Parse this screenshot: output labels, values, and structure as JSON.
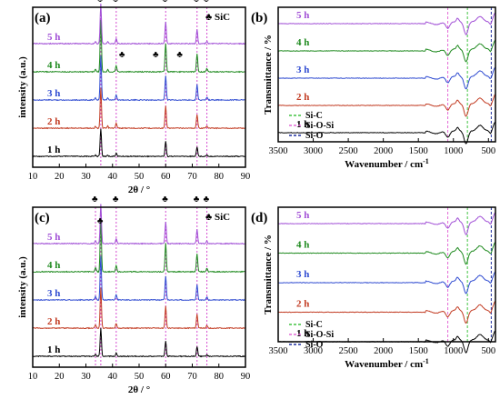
{
  "panels": [
    {
      "label": "(a)",
      "xlabel": "2θ / °",
      "ylabel": "intensity (a.u.)",
      "xticks": [
        "10",
        "20",
        "30",
        "40",
        "50",
        "60",
        "70",
        "80",
        "90"
      ],
      "legend": "SiC",
      "traces": [
        {
          "name": "1 h",
          "color": "#000000"
        },
        {
          "name": "2 h",
          "color": "#c23b22"
        },
        {
          "name": "3 h",
          "color": "#2f4bd1"
        },
        {
          "name": "4 h",
          "color": "#1f8a1f"
        },
        {
          "name": "5 h",
          "color": "#a14fd6"
        }
      ],
      "vlines": [
        35.6,
        41.4,
        60.0,
        71.8,
        75.5
      ],
      "markers": [
        {
          "x": 35.6,
          "trace": 4
        },
        {
          "x": 41.4,
          "trace": 4
        },
        {
          "x": 60.0,
          "trace": 4
        },
        {
          "x": 71.8,
          "trace": 4
        },
        {
          "x": 75.5,
          "trace": 4
        },
        {
          "x": 43.8,
          "trace": 3
        },
        {
          "x": 56.5,
          "trace": 3
        },
        {
          "x": 65.5,
          "trace": 3
        }
      ]
    },
    {
      "label": "(b)",
      "xlabel": "Wavenumber / cm-1",
      "ylabel": "Transmittance / %",
      "xticks": [
        "3500",
        "3000",
        "2500",
        "2000",
        "1500",
        "1000",
        "500"
      ],
      "traces": [
        {
          "name": "1 h",
          "color": "#000000"
        },
        {
          "name": "2 h",
          "color": "#c23b22"
        },
        {
          "name": "3 h",
          "color": "#2f4bd1"
        },
        {
          "name": "4 h",
          "color": "#1f8a1f"
        },
        {
          "name": "5 h",
          "color": "#a14fd6"
        }
      ],
      "vlines": [
        {
          "x": 1080,
          "color": "#e36ad6"
        },
        {
          "x": 800,
          "color": "#42c442"
        },
        {
          "x": 460,
          "color": "#1f2f9f"
        }
      ],
      "legend": [
        {
          "label": "Si-C",
          "color": "#42c442"
        },
        {
          "label": "Si-O-Si",
          "color": "#e36ad6"
        },
        {
          "label": "Si-O",
          "color": "#1f2f9f"
        }
      ]
    },
    {
      "label": "(c)",
      "xlabel": "2θ / °",
      "ylabel": "intensity (a.u.)",
      "xticks": [
        "10",
        "20",
        "30",
        "40",
        "50",
        "60",
        "70",
        "80",
        "90"
      ],
      "legend": "SiC",
      "traces": [
        {
          "name": "1 h",
          "color": "#000000"
        },
        {
          "name": "2 h",
          "color": "#c23b22"
        },
        {
          "name": "3 h",
          "color": "#2f4bd1"
        },
        {
          "name": "4 h",
          "color": "#1f8a1f"
        },
        {
          "name": "5 h",
          "color": "#a14fd6"
        }
      ],
      "vlines": [
        33.6,
        35.6,
        41.4,
        60.0,
        71.8,
        75.5
      ],
      "markers": [
        {
          "x": 33.6,
          "trace": 4
        },
        {
          "x": 35.6,
          "trace": 4,
          "high": true
        },
        {
          "x": 41.4,
          "trace": 4
        },
        {
          "x": 60.0,
          "trace": 4
        },
        {
          "x": 71.8,
          "trace": 4
        },
        {
          "x": 75.5,
          "trace": 4
        }
      ]
    },
    {
      "label": "(d)",
      "xlabel": "Wavenumber / cm-1",
      "ylabel": "Transmittance / %",
      "xticks": [
        "3500",
        "3000",
        "2500",
        "2000",
        "1500",
        "1000",
        "500"
      ],
      "traces": [
        {
          "name": "1 h",
          "color": "#000000"
        },
        {
          "name": "2 h",
          "color": "#c23b22"
        },
        {
          "name": "3 h",
          "color": "#2f4bd1"
        },
        {
          "name": "4 h",
          "color": "#1f8a1f"
        },
        {
          "name": "5 h",
          "color": "#a14fd6"
        }
      ],
      "vlines": [
        {
          "x": 1080,
          "color": "#e36ad6"
        },
        {
          "x": 800,
          "color": "#42c442"
        },
        {
          "x": 460,
          "color": "#1f2f9f"
        }
      ],
      "legend": [
        {
          "label": "Si-C",
          "color": "#42c442"
        },
        {
          "label": "Si-O-Si",
          "color": "#e36ad6"
        },
        {
          "label": "Si-O",
          "color": "#1f2f9f"
        }
      ]
    }
  ],
  "chart_data": [
    {
      "type": "line",
      "title": "(a)",
      "xlabel": "2θ / °",
      "ylabel": "intensity (a.u.)",
      "xlim": [
        10,
        90
      ],
      "x": [
        10,
        20,
        30,
        35.6,
        41.4,
        60.0,
        71.8,
        75.5,
        90
      ],
      "series": [
        {
          "name": "1 h",
          "values": [
            0,
            0,
            0,
            1,
            0.05,
            0.45,
            0.3,
            0.05,
            0
          ]
        },
        {
          "name": "2 h",
          "values": [
            0,
            0,
            0,
            1,
            0.05,
            0.45,
            0.3,
            0.05,
            0
          ]
        },
        {
          "name": "3 h",
          "values": [
            0,
            0,
            0,
            1,
            0.05,
            0.55,
            0.4,
            0.05,
            0
          ]
        },
        {
          "name": "4 h",
          "values": [
            0,
            0,
            0,
            1,
            0.1,
            0.5,
            0.35,
            0.05,
            0
          ]
        },
        {
          "name": "5 h",
          "values": [
            0,
            0,
            0,
            1,
            0.05,
            0.5,
            0.3,
            0.05,
            0
          ]
        }
      ],
      "annotations": [
        "SiC"
      ]
    },
    {
      "type": "line",
      "title": "(b)",
      "xlabel": "Wavenumber / cm-1",
      "ylabel": "Transmittance / %",
      "xlim": [
        3500,
        400
      ],
      "x": [
        3500,
        3000,
        2500,
        2000,
        1500,
        1200,
        1080,
        950,
        800,
        600,
        460,
        400
      ],
      "series": [
        {
          "name": "1 h",
          "values": [
            0,
            0,
            0,
            0,
            0,
            -0.1,
            -0.25,
            -0.15,
            -0.6,
            -0.2,
            0.1,
            0.2
          ]
        },
        {
          "name": "2 h",
          "values": [
            0,
            0,
            0,
            0,
            0,
            -0.1,
            -0.3,
            -0.2,
            -0.6,
            -0.2,
            0.1,
            0.2
          ]
        },
        {
          "name": "3 h",
          "values": [
            0,
            0,
            0,
            0,
            0,
            -0.1,
            -0.3,
            -0.2,
            -0.7,
            -0.2,
            0.1,
            0.2
          ]
        },
        {
          "name": "4 h",
          "values": [
            0,
            0,
            0,
            0,
            0,
            -0.1,
            -0.3,
            -0.2,
            -0.7,
            -0.2,
            0.1,
            0.2
          ]
        },
        {
          "name": "5 h",
          "values": [
            0,
            0,
            0,
            0,
            0,
            -0.1,
            -0.2,
            -0.1,
            -0.6,
            -0.2,
            0.1,
            0.2
          ]
        }
      ],
      "legend": [
        "Si-C",
        "Si-O-Si",
        "Si-O"
      ]
    },
    {
      "type": "line",
      "title": "(c)",
      "xlabel": "2θ / °",
      "ylabel": "intensity (a.u.)",
      "xlim": [
        10,
        90
      ],
      "x": [
        10,
        20,
        30,
        33.6,
        35.6,
        41.4,
        60.0,
        71.8,
        75.5,
        90
      ],
      "series": [
        {
          "name": "1 h",
          "values": [
            0,
            0,
            0,
            0.1,
            1,
            0.1,
            0.45,
            0.3,
            0.05,
            0
          ]
        },
        {
          "name": "2 h",
          "values": [
            0,
            0,
            0,
            0.1,
            1,
            0.1,
            0.45,
            0.3,
            0.05,
            0
          ]
        },
        {
          "name": "3 h",
          "values": [
            0,
            0,
            0,
            0.1,
            1,
            0.1,
            0.5,
            0.35,
            0.05,
            0
          ]
        },
        {
          "name": "4 h",
          "values": [
            0,
            0,
            0,
            0.1,
            1,
            0.1,
            0.5,
            0.35,
            0.05,
            0
          ]
        },
        {
          "name": "5 h",
          "values": [
            0,
            0,
            0,
            0.1,
            1,
            0.1,
            0.45,
            0.3,
            0.05,
            0
          ]
        }
      ],
      "annotations": [
        "SiC"
      ]
    },
    {
      "type": "line",
      "title": "(d)",
      "xlabel": "Wavenumber / cm-1",
      "ylabel": "Transmittance / %",
      "xlim": [
        3500,
        400
      ],
      "x": [
        3500,
        3000,
        2500,
        2000,
        1500,
        1200,
        1080,
        950,
        800,
        600,
        460,
        400
      ],
      "series": [
        {
          "name": "1 h",
          "values": [
            0,
            0,
            0,
            0,
            0,
            -0.1,
            -0.3,
            -0.2,
            -0.6,
            -0.2,
            0.1,
            0.2
          ]
        },
        {
          "name": "2 h",
          "values": [
            0,
            0,
            0,
            0,
            0,
            -0.1,
            -0.3,
            -0.2,
            -0.6,
            -0.2,
            0.1,
            0.2
          ]
        },
        {
          "name": "3 h",
          "values": [
            0,
            0,
            0,
            0,
            0,
            -0.1,
            -0.3,
            -0.2,
            -0.7,
            -0.2,
            0.1,
            0.2
          ]
        },
        {
          "name": "4 h",
          "values": [
            0,
            0,
            0,
            0,
            0,
            -0.1,
            -0.3,
            -0.2,
            -0.7,
            -0.2,
            0.1,
            0.2
          ]
        },
        {
          "name": "5 h",
          "values": [
            0,
            0,
            0,
            0,
            0,
            -0.1,
            -0.2,
            -0.1,
            -0.6,
            -0.2,
            0.1,
            0.2
          ]
        }
      ],
      "legend": [
        "Si-C",
        "Si-O-Si",
        "Si-O"
      ]
    }
  ]
}
